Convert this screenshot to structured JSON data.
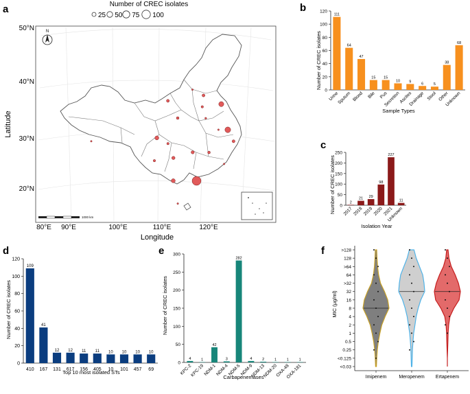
{
  "panels": {
    "a": "a",
    "b": "b",
    "c": "c",
    "d": "d",
    "e": "e",
    "f": "f"
  },
  "colors": {
    "orange": "#F7901E",
    "darkred": "#8B1A1A",
    "navy": "#0B3D7F",
    "teal": "#17867A",
    "circle": "#E15A5A",
    "imipenem_fill": "#7F7F7F",
    "imipenem_line": "#C9A227",
    "meropenem_fill": "#CFCFCF",
    "meropenem_line": "#4FB3E8",
    "ertapenem_fill": "#E36A6A",
    "ertapenem_line": "#C41E1E"
  },
  "chart_data": [
    {
      "id": "a",
      "type": "map",
      "legend_title": "Number of CREC isolates",
      "legend_sizes": [
        25,
        50,
        75,
        100
      ],
      "legend_labels": [
        "25",
        "50",
        "75",
        "100"
      ],
      "xlabel": "Longitude",
      "ylabel": "Latitude",
      "x_ticks": [
        "80°E",
        "90°E",
        "100°E",
        "110°E",
        "120°E"
      ],
      "y_ticks": [
        "50°N",
        "40°N",
        "30°N",
        "20°N"
      ],
      "north_label": "N",
      "scale_label": "1000 km",
      "points": [
        {
          "lon": 90,
          "lat": 30,
          "count": 2
        },
        {
          "lon": 105.5,
          "lat": 37,
          "count": 12
        },
        {
          "lon": 108,
          "lat": 34,
          "count": 10
        },
        {
          "lon": 110.5,
          "lat": 39,
          "count": 4
        },
        {
          "lon": 113,
          "lat": 38,
          "count": 12
        },
        {
          "lon": 113,
          "lat": 36,
          "count": 8
        },
        {
          "lon": 114,
          "lat": 34,
          "count": 5
        },
        {
          "lon": 117,
          "lat": 36.5,
          "count": 35
        },
        {
          "lon": 117,
          "lat": 32,
          "count": 4
        },
        {
          "lon": 119,
          "lat": 32,
          "count": 45
        },
        {
          "lon": 120.5,
          "lat": 30,
          "count": 12
        },
        {
          "lon": 104,
          "lat": 30.5,
          "count": 22
        },
        {
          "lon": 106.5,
          "lat": 29.5,
          "count": 8
        },
        {
          "lon": 104,
          "lat": 26.5,
          "count": 8
        },
        {
          "lon": 108,
          "lat": 27,
          "count": 15
        },
        {
          "lon": 112,
          "lat": 28,
          "count": 14
        },
        {
          "lon": 115.5,
          "lat": 28,
          "count": 10
        },
        {
          "lon": 119,
          "lat": 26,
          "count": 4
        },
        {
          "lon": 108.5,
          "lat": 23,
          "count": 22
        },
        {
          "lon": 113.5,
          "lat": 23,
          "count": 110
        },
        {
          "lon": 110,
          "lat": 19,
          "count": 4
        }
      ]
    },
    {
      "id": "b",
      "type": "bar",
      "ylabel": "Number of CREC isolates",
      "xlabel": "Sample Types",
      "categories": [
        "Urine",
        "Sputum",
        "Blood",
        "Bile",
        "Pus",
        "Secretion",
        "Ascites",
        "Drainage",
        "Stool",
        "Other",
        "Unknown"
      ],
      "values": [
        111,
        64,
        47,
        15,
        15,
        10,
        9,
        6,
        5,
        38,
        68
      ],
      "value_labels": [
        "111",
        "64",
        "47",
        "15",
        "15",
        "10",
        "9",
        "6",
        "5",
        "38",
        "68"
      ],
      "ylim": [
        0,
        120
      ],
      "yticks": [
        0,
        20,
        40,
        60,
        80,
        100,
        120
      ],
      "ytick_labels": [
        "0",
        "20",
        "40",
        "60",
        "80",
        "100",
        "120"
      ]
    },
    {
      "id": "c",
      "type": "bar",
      "ylabel": "Number of CREC isolates",
      "xlabel": "Isolation Year",
      "categories": [
        "2017",
        "2018",
        "2019",
        "2020",
        "2021",
        "Unknown"
      ],
      "values": [
        2,
        21,
        29,
        98,
        227,
        11
      ],
      "value_labels": [
        "2",
        "21",
        "29",
        "98",
        "227",
        "11"
      ],
      "ylim": [
        0,
        250
      ],
      "yticks": [
        0,
        50,
        100,
        150,
        200,
        250
      ],
      "ytick_labels": [
        "0",
        "50",
        "100",
        "150",
        "200",
        "250"
      ]
    },
    {
      "id": "d",
      "type": "bar",
      "ylabel": "Number of CREC isolates",
      "xlabel": "Top 10 most isolated STs",
      "categories": [
        "410",
        "167",
        "131",
        "617",
        "156",
        "405",
        "10",
        "101",
        "457",
        "69"
      ],
      "values": [
        109,
        41,
        12,
        12,
        11,
        11,
        10,
        10,
        10,
        10
      ],
      "value_labels": [
        "109",
        "41",
        "12",
        "12",
        "11",
        "11",
        "10",
        "10",
        "10",
        "10"
      ],
      "ylim": [
        0,
        120
      ],
      "yticks": [
        0,
        20,
        40,
        60,
        80,
        100,
        120
      ],
      "ytick_labels": [
        "0",
        "20",
        "40",
        "60",
        "80",
        "100",
        "120"
      ]
    },
    {
      "id": "e",
      "type": "bar",
      "ylabel": "Number of CREC isolates",
      "xlabel": "Carbapenemases",
      "categories": [
        "KPC-2",
        "KPC-19",
        "NDM-1",
        "NDM-4",
        "NDM-5",
        "NDM-9",
        "NDM-13",
        "NDM-20",
        "OXA-48",
        "OXA-181"
      ],
      "values": [
        4,
        1,
        42,
        3,
        282,
        4,
        2,
        1,
        1,
        1
      ],
      "value_labels": [
        "4",
        "1",
        "42",
        "3",
        "282",
        "4",
        "2",
        "1",
        "1",
        "1"
      ],
      "ylim": [
        0,
        300
      ],
      "yticks": [
        0,
        50,
        100,
        150,
        200,
        250,
        300
      ],
      "ytick_labels": [
        "0",
        "50",
        "100",
        "150",
        "200",
        "250",
        "300"
      ]
    },
    {
      "id": "f",
      "type": "violin",
      "ylabel": "MIC (μg/ml)",
      "categories": [
        "Imipenem",
        "Meropenem",
        "Ertapenem"
      ],
      "ytick_labels": [
        ">128",
        "128",
        ">64",
        "64",
        ">32",
        "32",
        "16",
        "8",
        "4",
        "2",
        "1",
        "0.5",
        "0.25",
        "<0.125",
        "<0.03"
      ],
      "medians": [
        8,
        32,
        32
      ]
    }
  ]
}
